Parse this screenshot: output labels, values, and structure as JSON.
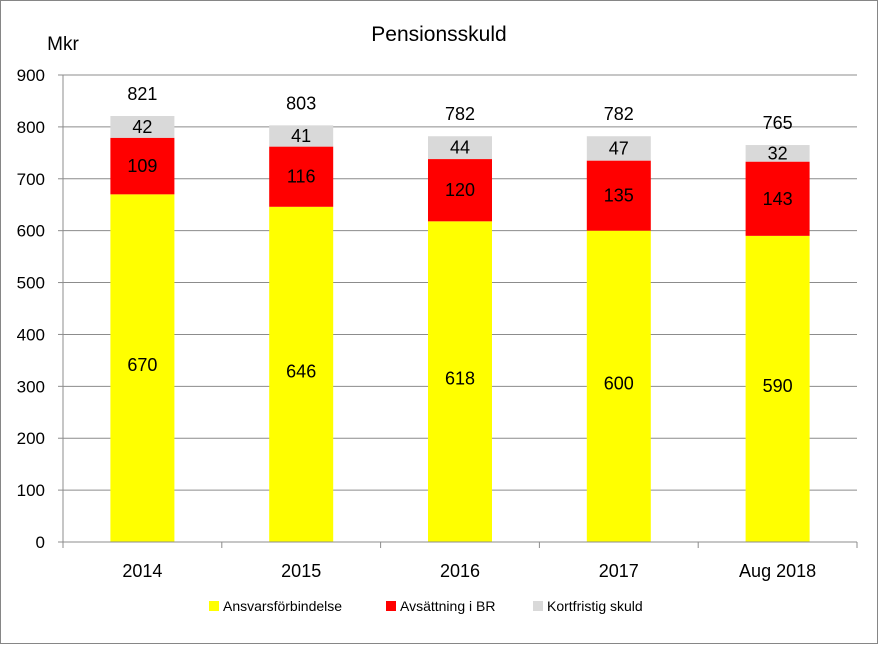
{
  "chart_data": {
    "type": "bar",
    "stacked": true,
    "title": "Pensionsskuld",
    "unit_label": "Mkr",
    "categories": [
      "2014",
      "2015",
      "2016",
      "2017",
      "Aug 2018"
    ],
    "series": [
      {
        "name": "Ansvarsförbindelse",
        "values": [
          670,
          646,
          618,
          600,
          590
        ],
        "color": "#ffff00"
      },
      {
        "name": "Avsättning i BR",
        "values": [
          109,
          116,
          120,
          135,
          143
        ],
        "color": "#ff0000"
      },
      {
        "name": "Kortfristig skuld",
        "values": [
          42,
          41,
          44,
          47,
          32
        ],
        "color": "#d9d9d9"
      }
    ],
    "totals": [
      821,
      803,
      782,
      782,
      765
    ],
    "ylim": [
      0,
      900
    ],
    "yticks": [
      0,
      100,
      200,
      300,
      400,
      500,
      600,
      700,
      800,
      900
    ],
    "grid": true,
    "legend_position": "bottom"
  }
}
